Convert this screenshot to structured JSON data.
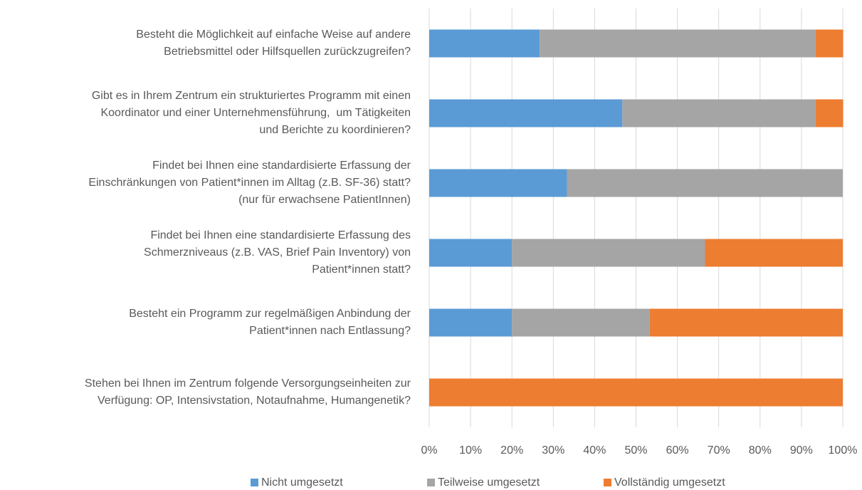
{
  "chart_data": {
    "type": "stacked-bar-horizontal",
    "categories": [
      [
        "Besteht die Möglichkeit auf einfache Weise auf andere",
        "Betriebsmittel oder Hilfsquellen zurückzugreifen?"
      ],
      [
        "Gibt es in Ihrem Zentrum ein strukturiertes Programm mit einen",
        "Koordinator und einer Unternehmensführung,  um Tätigkeiten",
        "und Berichte zu koordinieren?"
      ],
      [
        "Findet bei Ihnen eine standardisierte Erfassung der",
        "Einschränkungen von Patient*innen im Alltag (z.B. SF-36) statt?",
        "(nur für erwachsene PatientInnen)"
      ],
      [
        "Findet bei Ihnen eine standardisierte Erfassung des",
        "Schmerzniveaus (z.B. VAS, Brief Pain Inventory) von",
        "Patient*innen statt?"
      ],
      [
        "Besteht ein Programm zur regelmäßigen Anbindung der",
        "Patient*innen nach Entlassung?"
      ],
      [
        "Stehen bei Ihnen im Zentrum folgende Versorgungseinheiten zur",
        "Verfügung: OP, Intensivstation, Notaufnahme, Humangenetik?"
      ]
    ],
    "series": [
      {
        "name": "Nicht umgesetzt",
        "color": "#5b9bd5",
        "values": [
          26.7,
          46.7,
          33.3,
          20,
          20,
          0
        ]
      },
      {
        "name": "Teilweise umgesetzt",
        "color": "#a5a5a5",
        "values": [
          66.7,
          46.7,
          66.7,
          46.7,
          33.3,
          0
        ]
      },
      {
        "name": "Vollständig umgesetzt",
        "color": "#ed7d31",
        "values": [
          6.7,
          6.7,
          0,
          33.3,
          46.7,
          100
        ]
      }
    ],
    "xlim": [
      0,
      100
    ],
    "xticks": [
      {
        "value": 0,
        "label": "0%"
      },
      {
        "value": 10,
        "label": "10%"
      },
      {
        "value": 20,
        "label": "20%"
      },
      {
        "value": 30,
        "label": "30%"
      },
      {
        "value": 40,
        "label": "40%"
      },
      {
        "value": 50,
        "label": "50%"
      },
      {
        "value": 60,
        "label": "60%"
      },
      {
        "value": 70,
        "label": "70%"
      },
      {
        "value": 80,
        "label": "80%"
      },
      {
        "value": 90,
        "label": "90%"
      },
      {
        "value": 100,
        "label": "100%"
      }
    ],
    "grid": true,
    "legend": "bottom"
  }
}
